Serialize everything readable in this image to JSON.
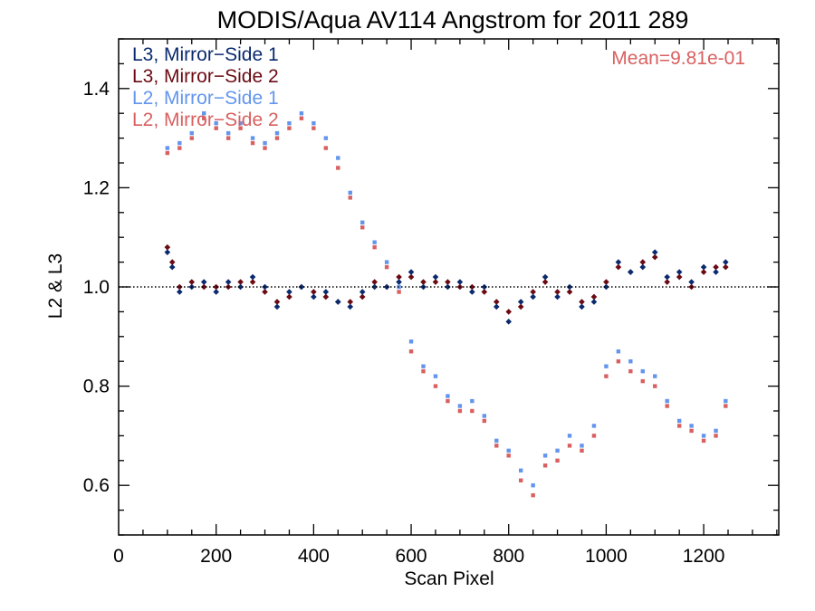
{
  "chart_data": {
    "type": "scatter",
    "title": "MODIS/Aqua AV114 Angstrom for 2011 289",
    "xlabel": "Scan Pixel",
    "ylabel": "L2 & L3",
    "xlim": [
      0,
      1354
    ],
    "ylim": [
      0.5,
      1.5
    ],
    "x_ticks": [
      0,
      200,
      400,
      600,
      800,
      1000,
      1200
    ],
    "x_tick_labels": [
      "0",
      "200",
      "400",
      "600",
      "800",
      "1000",
      "1200"
    ],
    "y_ticks": [
      0.6,
      0.8,
      1.0,
      1.2,
      1.4
    ],
    "y_tick_labels": [
      "0.6",
      "0.8",
      "1.0",
      "1.2",
      "1.4"
    ],
    "reference_line": 1.0,
    "annotation": "Mean=9.81e-01",
    "legend_position": "top-left",
    "series": [
      {
        "name": "L3, Mirror−Side 1",
        "color": "#0a2a6e",
        "marker": "diamond",
        "x": [
          100,
          110,
          125,
          150,
          175,
          200,
          225,
          250,
          275,
          300,
          325,
          350,
          375,
          400,
          425,
          450,
          475,
          500,
          525,
          550,
          575,
          600,
          625,
          650,
          675,
          700,
          725,
          750,
          775,
          800,
          825,
          850,
          875,
          900,
          925,
          950,
          975,
          1000,
          1025,
          1050,
          1075,
          1100,
          1125,
          1150,
          1175,
          1200,
          1225,
          1245
        ],
        "y": [
          1.07,
          1.04,
          0.99,
          1.0,
          1.01,
          0.99,
          1.01,
          1.0,
          1.02,
          1.0,
          0.96,
          0.99,
          1.0,
          0.98,
          0.99,
          0.97,
          0.96,
          0.99,
          1.0,
          1.0,
          1.01,
          1.03,
          1.0,
          1.02,
          1.0,
          1.01,
          0.99,
          1.0,
          0.96,
          0.93,
          0.97,
          0.98,
          1.02,
          0.98,
          1.0,
          0.96,
          0.97,
          1.0,
          1.05,
          1.03,
          1.04,
          1.07,
          1.02,
          1.03,
          1.01,
          1.04,
          1.03,
          1.05
        ]
      },
      {
        "name": "L3, Mirror−Side 2",
        "color": "#6b0a12",
        "marker": "diamond",
        "x": [
          100,
          110,
          125,
          150,
          175,
          200,
          225,
          250,
          275,
          300,
          325,
          350,
          375,
          400,
          425,
          450,
          475,
          500,
          525,
          550,
          575,
          600,
          625,
          650,
          675,
          700,
          725,
          750,
          775,
          800,
          825,
          850,
          875,
          900,
          925,
          950,
          975,
          1000,
          1025,
          1050,
          1075,
          1100,
          1125,
          1150,
          1175,
          1200,
          1225,
          1245
        ],
        "y": [
          1.08,
          1.05,
          1.0,
          1.01,
          1.0,
          1.0,
          1.0,
          1.01,
          1.01,
          0.99,
          0.97,
          0.98,
          1.0,
          0.99,
          0.98,
          0.97,
          0.97,
          0.98,
          1.01,
          1.0,
          1.02,
          1.02,
          1.01,
          1.01,
          1.01,
          1.0,
          1.0,
          0.99,
          0.97,
          0.95,
          0.96,
          0.99,
          1.01,
          0.99,
          0.99,
          0.97,
          0.98,
          1.01,
          1.04,
          1.03,
          1.05,
          1.06,
          1.01,
          1.02,
          1.0,
          1.03,
          1.04,
          1.04
        ]
      },
      {
        "name": "L2, Mirror−Side 1",
        "color": "#6495ed",
        "marker": "square",
        "x": [
          100,
          125,
          150,
          175,
          200,
          225,
          250,
          275,
          300,
          325,
          350,
          375,
          400,
          425,
          450,
          475,
          500,
          525,
          550,
          575,
          600,
          625,
          650,
          675,
          700,
          725,
          750,
          775,
          800,
          825,
          850,
          875,
          900,
          925,
          950,
          975,
          1000,
          1025,
          1050,
          1075,
          1100,
          1125,
          1150,
          1175,
          1200,
          1225,
          1245
        ],
        "y": [
          1.28,
          1.29,
          1.31,
          1.35,
          1.33,
          1.31,
          1.33,
          1.3,
          1.29,
          1.31,
          1.33,
          1.35,
          1.33,
          1.3,
          1.26,
          1.19,
          1.13,
          1.09,
          1.05,
          1.0,
          0.89,
          0.84,
          0.82,
          0.78,
          0.76,
          0.77,
          0.74,
          0.69,
          0.67,
          0.63,
          0.6,
          0.66,
          0.67,
          0.7,
          0.68,
          0.72,
          0.84,
          0.87,
          0.85,
          0.83,
          0.82,
          0.77,
          0.73,
          0.72,
          0.7,
          0.71,
          0.77
        ]
      },
      {
        "name": "L2, Mirror−Side 2",
        "color": "#d96060",
        "marker": "square",
        "x": [
          100,
          125,
          150,
          175,
          200,
          225,
          250,
          275,
          300,
          325,
          350,
          375,
          400,
          425,
          450,
          475,
          500,
          525,
          550,
          575,
          600,
          625,
          650,
          675,
          700,
          725,
          750,
          775,
          800,
          825,
          850,
          875,
          900,
          925,
          950,
          975,
          1000,
          1025,
          1050,
          1075,
          1100,
          1125,
          1150,
          1175,
          1200,
          1225,
          1245
        ],
        "y": [
          1.27,
          1.28,
          1.3,
          1.34,
          1.32,
          1.3,
          1.32,
          1.29,
          1.28,
          1.3,
          1.32,
          1.34,
          1.32,
          1.28,
          1.24,
          1.18,
          1.12,
          1.08,
          1.04,
          0.99,
          0.87,
          0.83,
          0.8,
          0.77,
          0.75,
          0.75,
          0.73,
          0.68,
          0.66,
          0.61,
          0.58,
          0.64,
          0.65,
          0.68,
          0.67,
          0.7,
          0.82,
          0.85,
          0.83,
          0.81,
          0.8,
          0.76,
          0.72,
          0.71,
          0.69,
          0.7,
          0.76
        ]
      }
    ]
  }
}
